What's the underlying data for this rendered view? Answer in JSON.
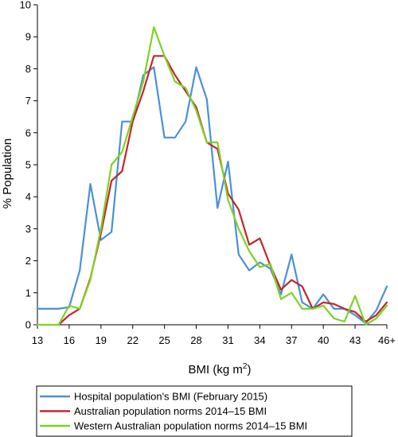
{
  "chart_data": {
    "type": "line",
    "xlabel": "BMI (kg m2)",
    "xlabel_main": "BMI (kg m",
    "xlabel_sup": "2",
    "xlabel_close": ")",
    "ylabel": "% Population",
    "xlim": [
      13,
      46
    ],
    "ylim": [
      0,
      10
    ],
    "grid": false,
    "legend_position": "bottom",
    "x_tick_values": [
      13,
      16,
      19,
      22,
      25,
      28,
      31,
      34,
      37,
      40,
      43,
      46
    ],
    "x_tick_labels": [
      "13",
      "16",
      "19",
      "22",
      "25",
      "28",
      "31",
      "34",
      "37",
      "40",
      "43",
      "46+"
    ],
    "y_tick_values": [
      0,
      1,
      2,
      3,
      4,
      5,
      6,
      7,
      8,
      9,
      10
    ],
    "y_tick_labels": [
      "0",
      "1",
      "2",
      "3",
      "4",
      "5",
      "6",
      "7",
      "8",
      "9",
      "10"
    ],
    "series": [
      {
        "name": "Hospital population's BMI (February 2015)",
        "color": "#4a90d9",
        "points": [
          [
            13,
            0.5
          ],
          [
            14,
            0.5
          ],
          [
            15,
            0.5
          ],
          [
            16,
            0.55
          ],
          [
            17,
            1.7
          ],
          [
            18,
            4.4
          ],
          [
            19,
            2.65
          ],
          [
            20,
            2.9
          ],
          [
            21,
            6.35
          ],
          [
            22,
            6.35
          ],
          [
            23,
            7.8
          ],
          [
            24,
            8.05
          ],
          [
            25,
            5.85
          ],
          [
            26,
            5.85
          ],
          [
            27,
            6.35
          ],
          [
            28,
            8.05
          ],
          [
            29,
            7.05
          ],
          [
            30,
            3.65
          ],
          [
            31,
            5.1
          ],
          [
            32,
            2.2
          ],
          [
            33,
            1.7
          ],
          [
            34,
            1.95
          ],
          [
            35,
            1.75
          ],
          [
            36,
            0.95
          ],
          [
            37,
            2.2
          ],
          [
            38,
            0.7
          ],
          [
            39,
            0.5
          ],
          [
            40,
            0.95
          ],
          [
            41,
            0.5
          ],
          [
            42,
            0.5
          ],
          [
            43,
            0.3
          ],
          [
            44,
            0.05
          ],
          [
            45,
            0.45
          ],
          [
            46,
            1.2
          ]
        ]
      },
      {
        "name": "Australian population norms 2014–15 BMI",
        "color": "#c1272d",
        "points": [
          [
            15,
            0.0
          ],
          [
            16,
            0.3
          ],
          [
            17,
            0.5
          ],
          [
            18,
            1.45
          ],
          [
            19,
            2.85
          ],
          [
            20,
            4.5
          ],
          [
            21,
            4.8
          ],
          [
            22,
            6.35
          ],
          [
            23,
            7.3
          ],
          [
            24,
            8.4
          ],
          [
            25,
            8.4
          ],
          [
            26,
            7.8
          ],
          [
            27,
            7.3
          ],
          [
            28,
            6.8
          ],
          [
            29,
            5.7
          ],
          [
            30,
            5.5
          ],
          [
            31,
            4.1
          ],
          [
            32,
            3.6
          ],
          [
            33,
            2.5
          ],
          [
            34,
            2.7
          ],
          [
            35,
            1.85
          ],
          [
            36,
            1.1
          ],
          [
            37,
            1.4
          ],
          [
            38,
            1.2
          ],
          [
            39,
            0.5
          ],
          [
            40,
            0.7
          ],
          [
            41,
            0.65
          ],
          [
            42,
            0.5
          ],
          [
            43,
            0.4
          ],
          [
            44,
            0.1
          ],
          [
            45,
            0.3
          ],
          [
            46,
            0.7
          ]
        ]
      },
      {
        "name": "Western Australian population norms 2014–15 BMI",
        "color": "#7ed321",
        "points": [
          [
            13,
            0.0
          ],
          [
            14,
            0.0
          ],
          [
            15,
            0.0
          ],
          [
            16,
            0.6
          ],
          [
            17,
            0.5
          ],
          [
            18,
            1.4
          ],
          [
            19,
            3.0
          ],
          [
            20,
            5.0
          ],
          [
            21,
            5.4
          ],
          [
            22,
            6.5
          ],
          [
            23,
            7.6
          ],
          [
            24,
            9.3
          ],
          [
            25,
            8.4
          ],
          [
            26,
            7.6
          ],
          [
            27,
            7.4
          ],
          [
            28,
            6.7
          ],
          [
            29,
            5.7
          ],
          [
            30,
            5.7
          ],
          [
            31,
            3.9
          ],
          [
            32,
            3.0
          ],
          [
            33,
            2.3
          ],
          [
            34,
            1.8
          ],
          [
            35,
            1.9
          ],
          [
            36,
            0.8
          ],
          [
            37,
            1.0
          ],
          [
            38,
            0.5
          ],
          [
            39,
            0.5
          ],
          [
            40,
            0.6
          ],
          [
            41,
            0.2
          ],
          [
            42,
            0.1
          ],
          [
            43,
            0.9
          ],
          [
            44,
            0.0
          ],
          [
            45,
            0.2
          ],
          [
            46,
            0.6
          ]
        ]
      }
    ]
  }
}
